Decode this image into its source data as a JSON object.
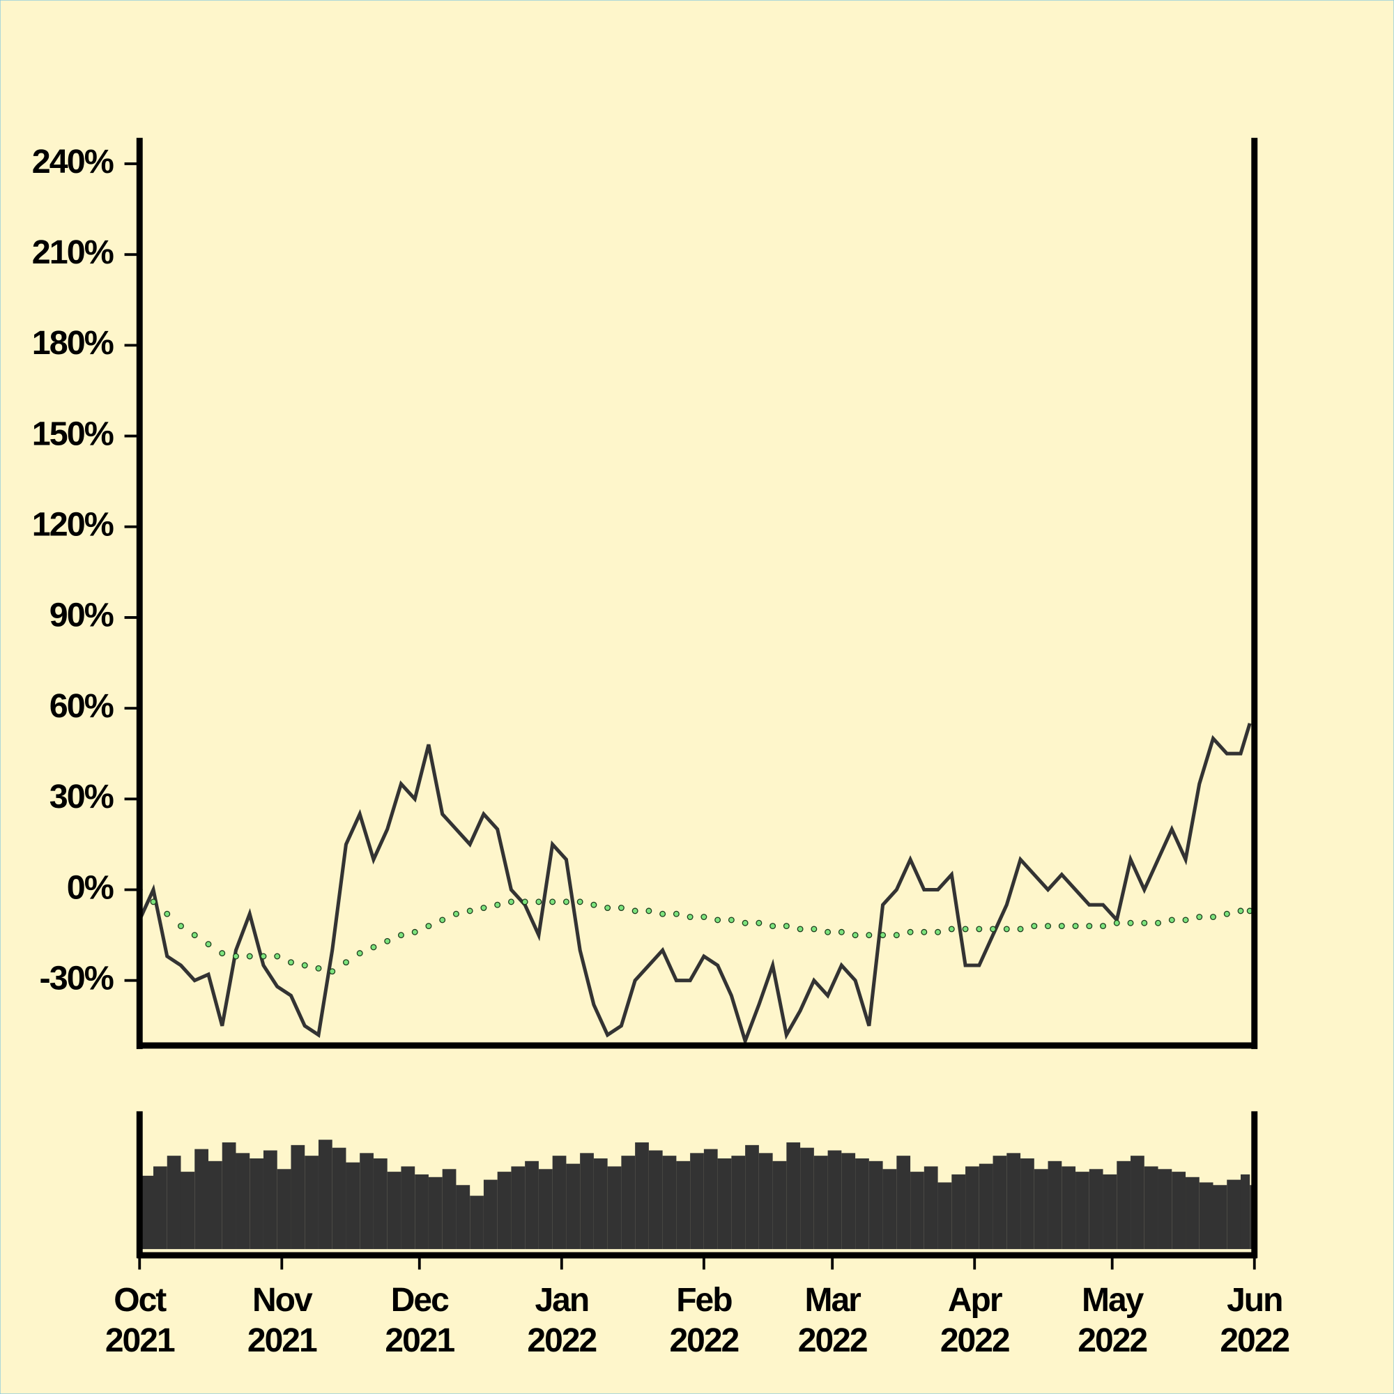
{
  "chart_data": [
    {
      "type": "line",
      "x": [
        "2021-10-01",
        "2021-10-04",
        "2021-10-07",
        "2021-10-10",
        "2021-10-13",
        "2021-10-16",
        "2021-10-19",
        "2021-10-22",
        "2021-10-25",
        "2021-10-28",
        "2021-10-31",
        "2021-11-03",
        "2021-11-06",
        "2021-11-09",
        "2021-11-12",
        "2021-11-15",
        "2021-11-18",
        "2021-11-21",
        "2021-11-24",
        "2021-11-27",
        "2021-11-30",
        "2021-12-03",
        "2021-12-06",
        "2021-12-09",
        "2021-12-12",
        "2021-12-15",
        "2021-12-18",
        "2021-12-21",
        "2021-12-24",
        "2021-12-27",
        "2021-12-30",
        "2022-01-02",
        "2022-01-05",
        "2022-01-08",
        "2022-01-11",
        "2022-01-14",
        "2022-01-17",
        "2022-01-20",
        "2022-01-23",
        "2022-01-26",
        "2022-01-29",
        "2022-02-01",
        "2022-02-04",
        "2022-02-07",
        "2022-02-10",
        "2022-02-13",
        "2022-02-16",
        "2022-02-19",
        "2022-02-22",
        "2022-02-25",
        "2022-02-28",
        "2022-03-03",
        "2022-03-06",
        "2022-03-09",
        "2022-03-12",
        "2022-03-15",
        "2022-03-18",
        "2022-03-21",
        "2022-03-24",
        "2022-03-27",
        "2022-03-30",
        "2022-04-02",
        "2022-04-05",
        "2022-04-08",
        "2022-04-11",
        "2022-04-14",
        "2022-04-17",
        "2022-04-20",
        "2022-04-23",
        "2022-04-26",
        "2022-04-29",
        "2022-05-02",
        "2022-05-05",
        "2022-05-08",
        "2022-05-11",
        "2022-05-14",
        "2022-05-17",
        "2022-05-20",
        "2022-05-23",
        "2022-05-26",
        "2022-05-29",
        "2022-05-31"
      ],
      "series": [
        {
          "color": "#333333",
          "style": "line",
          "values": [
            -10,
            0,
            -22,
            -25,
            -30,
            -28,
            -45,
            -20,
            -8,
            -25,
            -32,
            -35,
            -45,
            -48,
            -20,
            15,
            25,
            10,
            20,
            35,
            30,
            48,
            25,
            20,
            15,
            25,
            20,
            0,
            -5,
            -15,
            15,
            10,
            -20,
            -38,
            -48,
            -45,
            -30,
            -25,
            -20,
            -30,
            -30,
            -22,
            -25,
            -35,
            -50,
            -38,
            -25,
            -48,
            -40,
            -30,
            -35,
            -25,
            -30,
            -45,
            -5,
            0,
            10,
            0,
            0,
            5,
            -25,
            -25,
            -15,
            -5,
            10,
            5,
            0,
            5,
            0,
            -5,
            -5,
            -10,
            10,
            0,
            10,
            20,
            10,
            35,
            50,
            45,
            45,
            55
          ]
        },
        {
          "color": "#7de37d",
          "style": "dots",
          "values": [
            0,
            -4,
            -8,
            -12,
            -15,
            -18,
            -21,
            -22,
            -22,
            -22,
            -22,
            -24,
            -25,
            -26,
            -27,
            -24,
            -21,
            -19,
            -17,
            -15,
            -14,
            -12,
            -10,
            -8,
            -7,
            -6,
            -5,
            -4,
            -4,
            -4,
            -4,
            -4,
            -4,
            -5,
            -6,
            -6,
            -7,
            -7,
            -8,
            -8,
            -9,
            -9,
            -10,
            -10,
            -11,
            -11,
            -12,
            -12,
            -13,
            -13,
            -14,
            -14,
            -15,
            -15,
            -15,
            -15,
            -14,
            -14,
            -14,
            -13,
            -13,
            -13,
            -13,
            -13,
            -13,
            -12,
            -12,
            -12,
            -12,
            -12,
            -12,
            -11,
            -11,
            -11,
            -11,
            -10,
            -10,
            -9,
            -9,
            -8,
            -7,
            -7
          ]
        }
      ],
      "xlim": [
        "2021-10-01",
        "2022-06-01"
      ],
      "ylim": [
        -51.5,
        248
      ],
      "yticks": [
        {
          "value": 240,
          "label": "240%"
        },
        {
          "value": 210,
          "label": "210%"
        },
        {
          "value": 180,
          "label": "180%"
        },
        {
          "value": 150,
          "label": "150%"
        },
        {
          "value": 120,
          "label": "120%"
        },
        {
          "value": 90,
          "label": "90%"
        },
        {
          "value": 60,
          "label": "60%"
        },
        {
          "value": 30,
          "label": "30%"
        },
        {
          "value": 0,
          "label": "0%"
        },
        {
          "value": -30,
          "label": "-30%"
        }
      ]
    },
    {
      "type": "bar",
      "color": "#333333",
      "x": [
        "2021-10-01",
        "2021-10-04",
        "2021-10-07",
        "2021-10-10",
        "2021-10-13",
        "2021-10-16",
        "2021-10-19",
        "2021-10-22",
        "2021-10-25",
        "2021-10-28",
        "2021-10-31",
        "2021-11-03",
        "2021-11-06",
        "2021-11-09",
        "2021-11-12",
        "2021-11-15",
        "2021-11-18",
        "2021-11-21",
        "2021-11-24",
        "2021-11-27",
        "2021-11-30",
        "2021-12-03",
        "2021-12-06",
        "2021-12-09",
        "2021-12-12",
        "2021-12-15",
        "2021-12-18",
        "2021-12-21",
        "2021-12-24",
        "2021-12-27",
        "2021-12-30",
        "2022-01-02",
        "2022-01-05",
        "2022-01-08",
        "2022-01-11",
        "2022-01-14",
        "2022-01-17",
        "2022-01-20",
        "2022-01-23",
        "2022-01-26",
        "2022-01-29",
        "2022-02-01",
        "2022-02-04",
        "2022-02-07",
        "2022-02-10",
        "2022-02-13",
        "2022-02-16",
        "2022-02-19",
        "2022-02-22",
        "2022-02-25",
        "2022-02-28",
        "2022-03-03",
        "2022-03-06",
        "2022-03-09",
        "2022-03-12",
        "2022-03-15",
        "2022-03-18",
        "2022-03-21",
        "2022-03-24",
        "2022-03-27",
        "2022-03-30",
        "2022-04-02",
        "2022-04-05",
        "2022-04-08",
        "2022-04-11",
        "2022-04-14",
        "2022-04-17",
        "2022-04-20",
        "2022-04-23",
        "2022-04-26",
        "2022-04-29",
        "2022-05-02",
        "2022-05-05",
        "2022-05-08",
        "2022-05-11",
        "2022-05-14",
        "2022-05-17",
        "2022-05-20",
        "2022-05-23",
        "2022-05-26",
        "2022-05-29",
        "2022-05-31"
      ],
      "values": [
        55,
        62,
        70,
        58,
        75,
        66,
        80,
        72,
        68,
        74,
        60,
        78,
        70,
        82,
        76,
        65,
        72,
        68,
        58,
        62,
        56,
        54,
        60,
        48,
        40,
        52,
        58,
        62,
        66,
        60,
        70,
        64,
        72,
        68,
        62,
        70,
        80,
        74,
        70,
        66,
        72,
        75,
        68,
        70,
        78,
        72,
        66,
        80,
        76,
        70,
        74,
        72,
        68,
        66,
        60,
        70,
        58,
        62,
        50,
        56,
        62,
        64,
        70,
        72,
        68,
        60,
        66,
        62,
        58,
        60,
        56,
        66,
        70,
        62,
        60,
        58,
        54,
        50,
        48,
        52,
        56,
        48
      ],
      "xlim": [
        "2021-10-01",
        "2022-06-01"
      ],
      "ylim": [
        0,
        100
      ],
      "xticks": [
        {
          "value": "2021-10-01",
          "label": "Oct\n2021"
        },
        {
          "value": "2021-11-01",
          "label": "Nov\n2021"
        },
        {
          "value": "2021-12-01",
          "label": "Dec\n2021"
        },
        {
          "value": "2022-01-01",
          "label": "Jan\n2022"
        },
        {
          "value": "2022-02-01",
          "label": "Feb\n2022"
        },
        {
          "value": "2022-03-01",
          "label": "Mar\n2022"
        },
        {
          "value": "2022-04-01",
          "label": "Apr\n2022"
        },
        {
          "value": "2022-05-01",
          "label": "May\n2022"
        },
        {
          "value": "2022-06-01",
          "label": "Jun\n2022"
        }
      ]
    }
  ]
}
